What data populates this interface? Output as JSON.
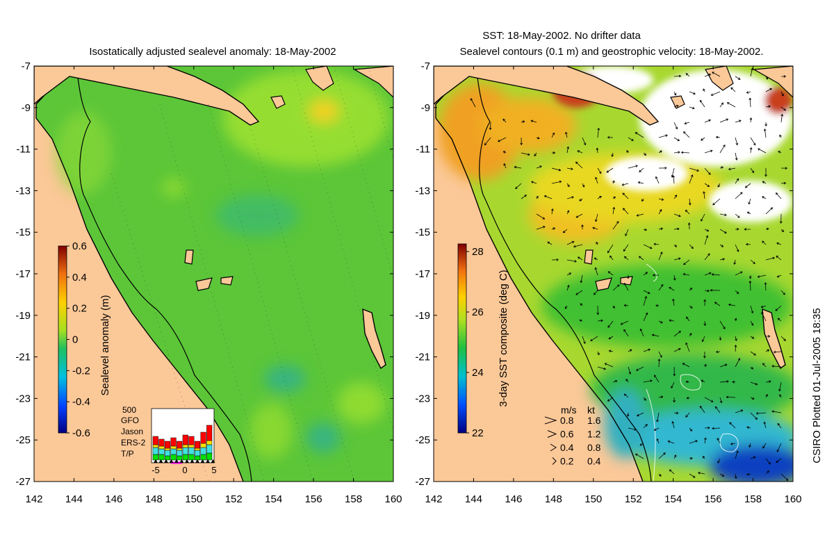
{
  "left_panel": {
    "title": "Isostatically adjusted sealevel anomaly: 18-May-2002",
    "x_ticks": [
      "142",
      "144",
      "146",
      "148",
      "150",
      "152",
      "154",
      "156",
      "158",
      "160"
    ],
    "y_ticks": [
      "-7",
      "-9",
      "-11",
      "-13",
      "-15",
      "-17",
      "-19",
      "-21",
      "-23",
      "-25",
      "-27"
    ],
    "colorbar": {
      "label": "Sealevel anomaly (m)",
      "ticks": [
        "0.6",
        "0.4",
        "0.2",
        "0",
        "-0.2",
        "-0.4",
        "-0.6"
      ]
    },
    "inset": {
      "ymax_label": "500",
      "legend": [
        {
          "name": "GFO",
          "color": "#ff0000"
        },
        {
          "name": "Jason",
          "color": "#ffe000"
        },
        {
          "name": "ERS-2",
          "color": "#40e0e0"
        },
        {
          "name": "T/P",
          "color": "#00e000"
        }
      ],
      "x_ticks": [
        "-5",
        "0",
        "5"
      ]
    }
  },
  "right_panel": {
    "title_line1": "SST: 18-May-2002. No drifter data",
    "title_line2": "Sealevel contours (0.1 m) and geostrophic velocity: 18-May-2002.",
    "x_ticks": [
      "142",
      "144",
      "146",
      "148",
      "150",
      "152",
      "154",
      "156",
      "158",
      "160"
    ],
    "y_ticks": [
      "-7",
      "-9",
      "-11",
      "-13",
      "-15",
      "-17",
      "-19",
      "-21",
      "-23",
      "-25",
      "-27"
    ],
    "colorbar": {
      "label": "3-day SST composite (deg C)",
      "ticks": [
        "28",
        "26",
        "24",
        "22"
      ]
    },
    "velocity_legend": {
      "header_ms": "m/s",
      "header_kt": "kt",
      "rows": [
        {
          "ms": "0.8",
          "kt": "1.6"
        },
        {
          "ms": "0.6",
          "kt": "1.2"
        },
        {
          "ms": "0.4",
          "kt": "0.8"
        },
        {
          "ms": "0.2",
          "kt": "0.4"
        }
      ]
    }
  },
  "credit": "CSIRO Plotted 01-Jul-2005 18:35",
  "colors": {
    "land": "#fbc898",
    "sea_green": "#5cc638",
    "sea_light": "#9be030",
    "warm": "#f0a020",
    "hot": "#c8401c",
    "cool": "#30b8d0",
    "cold": "#1040c0"
  }
}
